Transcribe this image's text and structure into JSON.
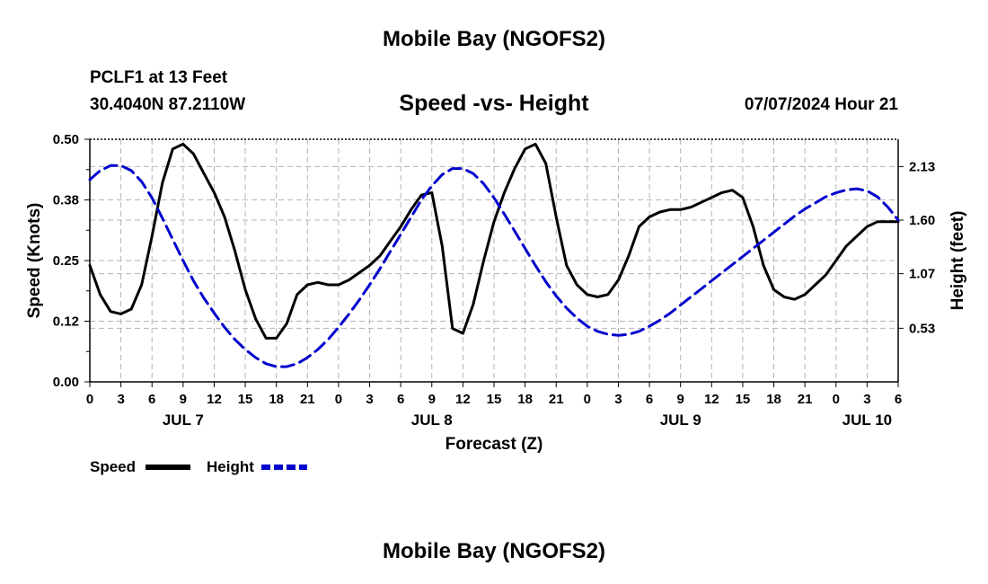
{
  "header": {
    "title": "Mobile Bay (NGOFS2)",
    "station": "PCLF1 at 13 Feet",
    "coords": "30.4040N  87.2110W",
    "subtitle": "Speed -vs- Height",
    "datetime": "07/07/2024 Hour 21"
  },
  "footer": {
    "title": "Mobile Bay (NGOFS2)"
  },
  "legend": {
    "speed_label": "Speed",
    "height_label": "Height"
  },
  "colors": {
    "speed": "#000000",
    "height": "#0000cc",
    "grid": "#b4b4b4"
  },
  "chart_data": {
    "type": "line",
    "xlabel": "Forecast (Z)",
    "ylabel_left": "Speed (Knots)",
    "ylabel_right": "Height (feet)",
    "x_unit": "hours",
    "xlim": [
      0,
      78
    ],
    "x_tick_labels": [
      "0",
      "3",
      "6",
      "9",
      "12",
      "15",
      "18",
      "21",
      "0",
      "3",
      "6",
      "9",
      "12",
      "15",
      "18",
      "21",
      "0",
      "3",
      "6",
      "9",
      "12",
      "15",
      "18",
      "21",
      "0",
      "3",
      "6"
    ],
    "day_labels": [
      {
        "x": 9,
        "label": "JUL 7"
      },
      {
        "x": 33,
        "label": "JUL 8"
      },
      {
        "x": 57,
        "label": "JUL 9"
      },
      {
        "x": 75,
        "label": "JUL 10"
      }
    ],
    "ylim_left": [
      0,
      0.5
    ],
    "yticks_left": [
      "0.00",
      "0.12",
      "0.25",
      "0.38",
      "0.50"
    ],
    "ylim_right": [
      0,
      2.4
    ],
    "yticks_right": [
      {
        "value": 0.53,
        "label": "0.53"
      },
      {
        "value": 1.07,
        "label": "1.07"
      },
      {
        "value": 1.6,
        "label": "1.60"
      },
      {
        "value": 2.13,
        "label": "2.13"
      }
    ],
    "grid": true,
    "series": [
      {
        "name": "Speed",
        "axis": "left",
        "style": "solid",
        "x": [
          0,
          1,
          2,
          3,
          4,
          5,
          6,
          7,
          8,
          9,
          10,
          11,
          12,
          13,
          14,
          15,
          16,
          17,
          18,
          19,
          20,
          21,
          22,
          23,
          24,
          25,
          26,
          27,
          28,
          29,
          30,
          31,
          32,
          33,
          34,
          35,
          36,
          37,
          38,
          39,
          40,
          41,
          42,
          43,
          44,
          45,
          46,
          47,
          48,
          49,
          50,
          51,
          52,
          53,
          54,
          55,
          56,
          57,
          58,
          59,
          60,
          61,
          62,
          63,
          64,
          65,
          66,
          67,
          68,
          69,
          70,
          71,
          72,
          73,
          74,
          75,
          76,
          77,
          78
        ],
        "values": [
          0.24,
          0.18,
          0.145,
          0.14,
          0.15,
          0.2,
          0.3,
          0.41,
          0.48,
          0.49,
          0.47,
          0.43,
          0.39,
          0.34,
          0.27,
          0.19,
          0.13,
          0.09,
          0.09,
          0.12,
          0.18,
          0.2,
          0.205,
          0.2,
          0.2,
          0.21,
          0.225,
          0.24,
          0.26,
          0.29,
          0.32,
          0.355,
          0.385,
          0.39,
          0.28,
          0.11,
          0.1,
          0.16,
          0.25,
          0.33,
          0.39,
          0.44,
          0.48,
          0.49,
          0.45,
          0.34,
          0.24,
          0.2,
          0.18,
          0.175,
          0.18,
          0.21,
          0.26,
          0.32,
          0.34,
          0.35,
          0.355,
          0.355,
          0.36,
          0.37,
          0.38,
          0.39,
          0.395,
          0.38,
          0.32,
          0.24,
          0.19,
          0.175,
          0.17,
          0.18,
          0.2,
          0.22,
          0.25,
          0.28,
          0.3,
          0.32,
          0.33,
          0.33,
          0.33
        ]
      },
      {
        "name": "Height",
        "axis": "right",
        "style": "dashed",
        "x": [
          0,
          1,
          2,
          3,
          4,
          5,
          6,
          7,
          8,
          9,
          10,
          11,
          12,
          13,
          14,
          15,
          16,
          17,
          18,
          19,
          20,
          21,
          22,
          23,
          24,
          25,
          26,
          27,
          28,
          29,
          30,
          31,
          32,
          33,
          34,
          35,
          36,
          37,
          38,
          39,
          40,
          41,
          42,
          43,
          44,
          45,
          46,
          47,
          48,
          49,
          50,
          51,
          52,
          53,
          54,
          55,
          56,
          57,
          58,
          59,
          60,
          61,
          62,
          63,
          64,
          65,
          66,
          67,
          68,
          69,
          70,
          71,
          72,
          73,
          74,
          75,
          76,
          77,
          78
        ],
        "values": [
          2.0,
          2.09,
          2.14,
          2.14,
          2.09,
          1.98,
          1.82,
          1.62,
          1.41,
          1.2,
          1.0,
          0.83,
          0.68,
          0.54,
          0.42,
          0.32,
          0.24,
          0.18,
          0.15,
          0.15,
          0.18,
          0.24,
          0.32,
          0.42,
          0.54,
          0.67,
          0.81,
          0.96,
          1.12,
          1.29,
          1.46,
          1.63,
          1.8,
          1.94,
          2.05,
          2.11,
          2.11,
          2.06,
          1.96,
          1.82,
          1.66,
          1.49,
          1.32,
          1.15,
          0.99,
          0.85,
          0.73,
          0.63,
          0.55,
          0.5,
          0.47,
          0.46,
          0.47,
          0.5,
          0.55,
          0.61,
          0.68,
          0.76,
          0.84,
          0.92,
          1.0,
          1.08,
          1.16,
          1.24,
          1.32,
          1.4,
          1.48,
          1.56,
          1.64,
          1.71,
          1.77,
          1.83,
          1.87,
          1.9,
          1.91,
          1.89,
          1.83,
          1.73,
          1.6
        ]
      }
    ]
  }
}
